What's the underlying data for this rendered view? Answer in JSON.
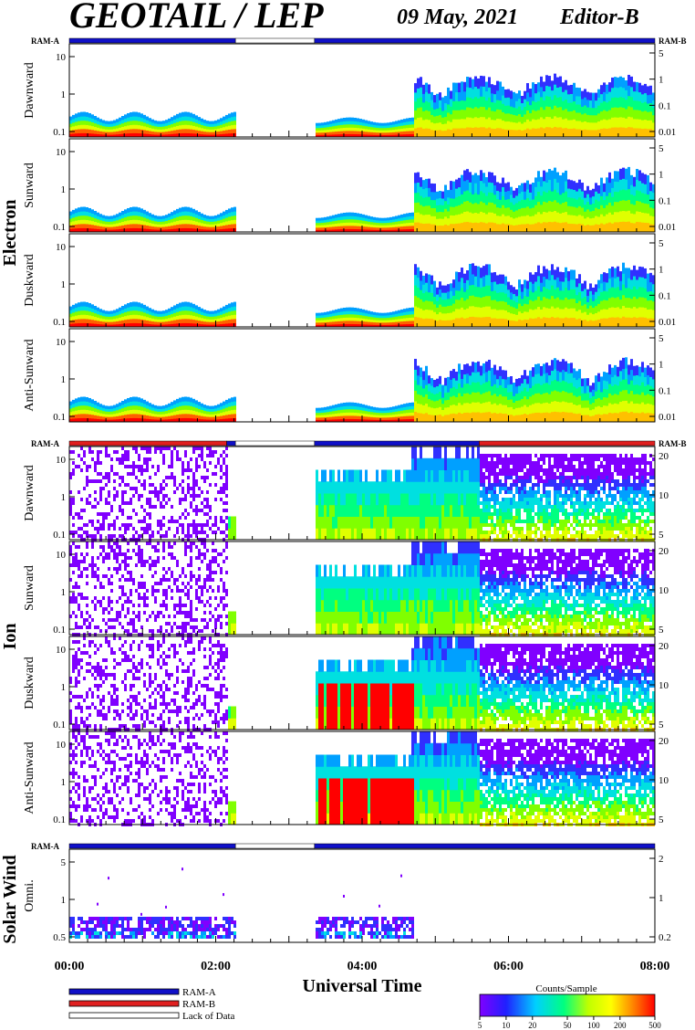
{
  "header": {
    "title": "GEOTAIL / LEP",
    "date": "09 May, 2021",
    "editor": "Editor-B"
  },
  "xaxis": {
    "label": "Universal Time",
    "range_hours": [
      0,
      8
    ],
    "ticks": [
      {
        "h": 0,
        "label": "00:00"
      },
      {
        "h": 2,
        "label": "02:00"
      },
      {
        "h": 4,
        "label": "04:00"
      },
      {
        "h": 6,
        "label": "06:00"
      },
      {
        "h": 8,
        "label": "08:00"
      }
    ]
  },
  "colors": {
    "ram_a": "#1010c8",
    "ram_b": "#e02020",
    "lack": "#ffffff"
  },
  "legend": {
    "ram_a": "RAM-A",
    "ram_b": "RAM-B",
    "lack": "Lack of Data"
  },
  "colorbar": {
    "title": "Counts/Sample",
    "ticks": [
      "5",
      "10",
      "20",
      "50",
      "100",
      "200",
      "500"
    ],
    "colors": [
      "#8000ff",
      "#2020ff",
      "#00d0ff",
      "#00ff80",
      "#c0ff00",
      "#ffff00",
      "#ff8000",
      "#ff0000"
    ]
  },
  "chart_data": {
    "type": "heatmap",
    "groups": [
      {
        "label": "Electron",
        "bar": {
          "left": "RAM-A",
          "right": "RAM-B",
          "segments": [
            {
              "start": 0,
              "end": 2.27,
              "mode": "A"
            },
            {
              "start": 2.27,
              "end": 3.35,
              "mode": "none"
            },
            {
              "start": 3.35,
              "end": 8,
              "mode": "A"
            }
          ]
        },
        "rows": [
          {
            "label": "Dawnward",
            "left_ticks": [
              "10",
              "1",
              "0.1"
            ],
            "right_ticks": [
              "5",
              "1",
              "0.1",
              "0.01"
            ]
          },
          {
            "label": "Sunward",
            "left_ticks": [
              "10",
              "1",
              "0.1"
            ],
            "right_ticks": [
              "5",
              "1",
              "0.1",
              "0.01"
            ]
          },
          {
            "label": "Duskward",
            "left_ticks": [
              "10",
              "1",
              "0.1"
            ],
            "right_ticks": [
              "5",
              "1",
              "0.1",
              "0.01"
            ]
          },
          {
            "label": "Anti-Sunward",
            "left_ticks": [
              "10",
              "1",
              "0.1"
            ],
            "right_ticks": [
              "5",
              "1",
              "0.1",
              "0.01"
            ]
          }
        ],
        "gaps": [
          [
            2.27,
            3.35
          ]
        ]
      },
      {
        "label": "Ion",
        "bar": {
          "left": "RAM-A",
          "right": "RAM-B",
          "segments": [
            {
              "start": 0,
              "end": 2.15,
              "mode": "B"
            },
            {
              "start": 2.15,
              "end": 2.27,
              "mode": "A"
            },
            {
              "start": 2.27,
              "end": 3.35,
              "mode": "none"
            },
            {
              "start": 3.35,
              "end": 5.6,
              "mode": "A"
            },
            {
              "start": 5.6,
              "end": 8,
              "mode": "B"
            }
          ]
        },
        "rows": [
          {
            "label": "Dawnward",
            "left_ticks": [
              "10",
              "1",
              "0.1"
            ],
            "right_ticks": [
              "20",
              "10",
              "5"
            ]
          },
          {
            "label": "Sunward",
            "left_ticks": [
              "10",
              "1",
              "0.1"
            ],
            "right_ticks": [
              "20",
              "10",
              "5"
            ]
          },
          {
            "label": "Duskward",
            "left_ticks": [
              "10",
              "1",
              "0.1"
            ],
            "right_ticks": [
              "20",
              "10",
              "5"
            ]
          },
          {
            "label": "Anti-Sunward",
            "left_ticks": [
              "10",
              "1",
              "0.1"
            ],
            "right_ticks": [
              "20",
              "10",
              "5"
            ]
          }
        ],
        "gaps": [
          [
            2.27,
            3.35
          ]
        ]
      },
      {
        "label": "Solar Wind",
        "bar": {
          "left": "RAM-A",
          "right": "",
          "segments": [
            {
              "start": 0,
              "end": 2.27,
              "mode": "A"
            },
            {
              "start": 2.27,
              "end": 3.35,
              "mode": "none"
            },
            {
              "start": 3.35,
              "end": 8,
              "mode": "A"
            }
          ]
        },
        "rows": [
          {
            "label": "Omni.",
            "left_ticks": [
              "5",
              "1",
              "0.5"
            ],
            "right_ticks": [
              "2",
              "1",
              "0.2"
            ]
          }
        ],
        "gaps": [
          [
            2.27,
            3.35
          ],
          [
            4.7,
            8
          ]
        ]
      }
    ]
  }
}
